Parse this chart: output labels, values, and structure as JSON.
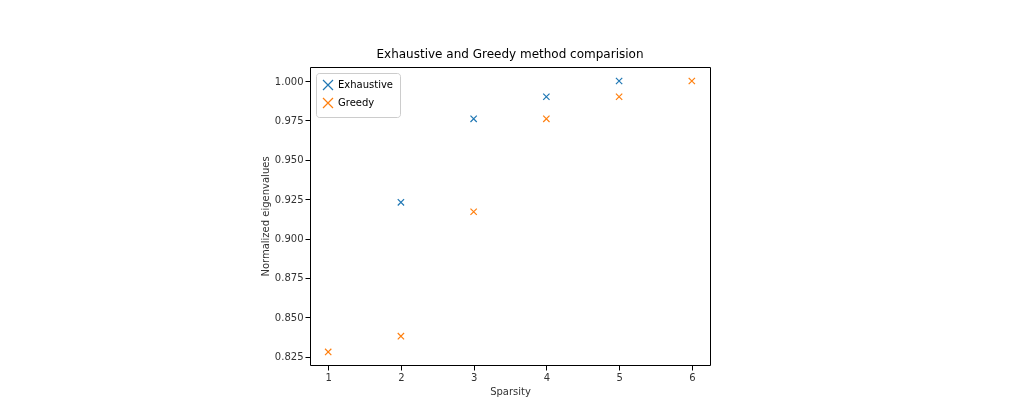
{
  "chart_data": {
    "type": "scatter",
    "title": "Exhaustive and Greedy method comparision",
    "xlabel": "Sparsity",
    "ylabel": "Normalized eigenvalues",
    "x": [
      1,
      2,
      3,
      4,
      5,
      6
    ],
    "series": [
      {
        "name": "Exhaustive",
        "color": "#1f77b4",
        "values": [
          null,
          0.923,
          0.976,
          0.99,
          1.0,
          null
        ]
      },
      {
        "name": "Greedy",
        "color": "#ff7f0e",
        "values": [
          0.828,
          0.838,
          0.917,
          0.976,
          0.99,
          1.0
        ]
      }
    ],
    "xlim": [
      0.75,
      6.25
    ],
    "xticks": [
      1,
      2,
      3,
      4,
      5,
      6
    ],
    "ylim": [
      0.8197,
      1.0089
    ],
    "yticks": [
      0.825,
      {
        "value": 0.85,
        "label": "0.850"
      },
      0.875,
      {
        "value": 0.9,
        "label": "0.900"
      },
      0.925,
      {
        "value": 0.95,
        "label": "0.950"
      },
      0.975,
      {
        "value": 1,
        "label": "1.000"
      }
    ],
    "marker": "cross",
    "legend": "top left"
  }
}
